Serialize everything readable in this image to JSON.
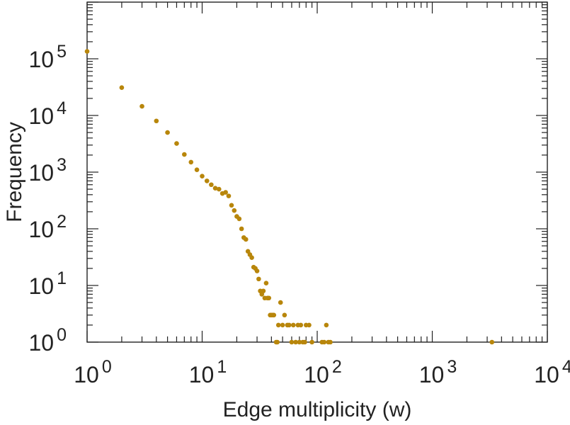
{
  "chart_data": {
    "type": "scatter",
    "xlabel": "Edge multiplicity (w)",
    "ylabel": "Frequency",
    "xscale": "log",
    "yscale": "log",
    "xlim": [
      1,
      10000
    ],
    "ylim": [
      1,
      1000000
    ],
    "grid": false,
    "legend": "none",
    "marker_color": "#b8860b",
    "axis_color": "#222222",
    "x_ticks": [
      {
        "base": "10",
        "exp": "0"
      },
      {
        "base": "10",
        "exp": "1"
      },
      {
        "base": "10",
        "exp": "2"
      },
      {
        "base": "10",
        "exp": "3"
      },
      {
        "base": "10",
        "exp": "4"
      }
    ],
    "y_ticks": [
      {
        "base": "10",
        "exp": "0"
      },
      {
        "base": "10",
        "exp": "1"
      },
      {
        "base": "10",
        "exp": "2"
      },
      {
        "base": "10",
        "exp": "3"
      },
      {
        "base": "10",
        "exp": "4"
      },
      {
        "base": "10",
        "exp": "5"
      }
    ],
    "series": [
      {
        "points": [
          [
            1,
            135000
          ],
          [
            2,
            31000
          ],
          [
            3,
            14500
          ],
          [
            4,
            8000
          ],
          [
            5,
            5000
          ],
          [
            6,
            3200
          ],
          [
            7,
            2050
          ],
          [
            8,
            1500
          ],
          [
            9,
            1100
          ],
          [
            10,
            850
          ],
          [
            11,
            700
          ],
          [
            12,
            600
          ],
          [
            13,
            520
          ],
          [
            14,
            500
          ],
          [
            15,
            420
          ],
          [
            16,
            440
          ],
          [
            17,
            380
          ],
          [
            18,
            260
          ],
          [
            19,
            210
          ],
          [
            20,
            165
          ],
          [
            21,
            150
          ],
          [
            22,
            100
          ],
          [
            23,
            70
          ],
          [
            24,
            65
          ],
          [
            25,
            40
          ],
          [
            26,
            35
          ],
          [
            27,
            31
          ],
          [
            28,
            21
          ],
          [
            29,
            20
          ],
          [
            30,
            18
          ],
          [
            31,
            13
          ],
          [
            32,
            8
          ],
          [
            33,
            7
          ],
          [
            34,
            8
          ],
          [
            35,
            6
          ],
          [
            36,
            11
          ],
          [
            37,
            6
          ],
          [
            38,
            6
          ],
          [
            39,
            3
          ],
          [
            40,
            3
          ],
          [
            41,
            3
          ],
          [
            42,
            3
          ],
          [
            44,
            1
          ],
          [
            45,
            1
          ],
          [
            46,
            2
          ],
          [
            48,
            5
          ],
          [
            50,
            2
          ],
          [
            52,
            3
          ],
          [
            55,
            2
          ],
          [
            57,
            2
          ],
          [
            60,
            1
          ],
          [
            62,
            2
          ],
          [
            65,
            1
          ],
          [
            68,
            2
          ],
          [
            70,
            1
          ],
          [
            72,
            2
          ],
          [
            75,
            1
          ],
          [
            78,
            1
          ],
          [
            80,
            2
          ],
          [
            85,
            2
          ],
          [
            90,
            1
          ],
          [
            110,
            1
          ],
          [
            115,
            1
          ],
          [
            120,
            2
          ],
          [
            125,
            1
          ],
          [
            130,
            1
          ],
          [
            3300,
            1
          ]
        ]
      }
    ]
  }
}
